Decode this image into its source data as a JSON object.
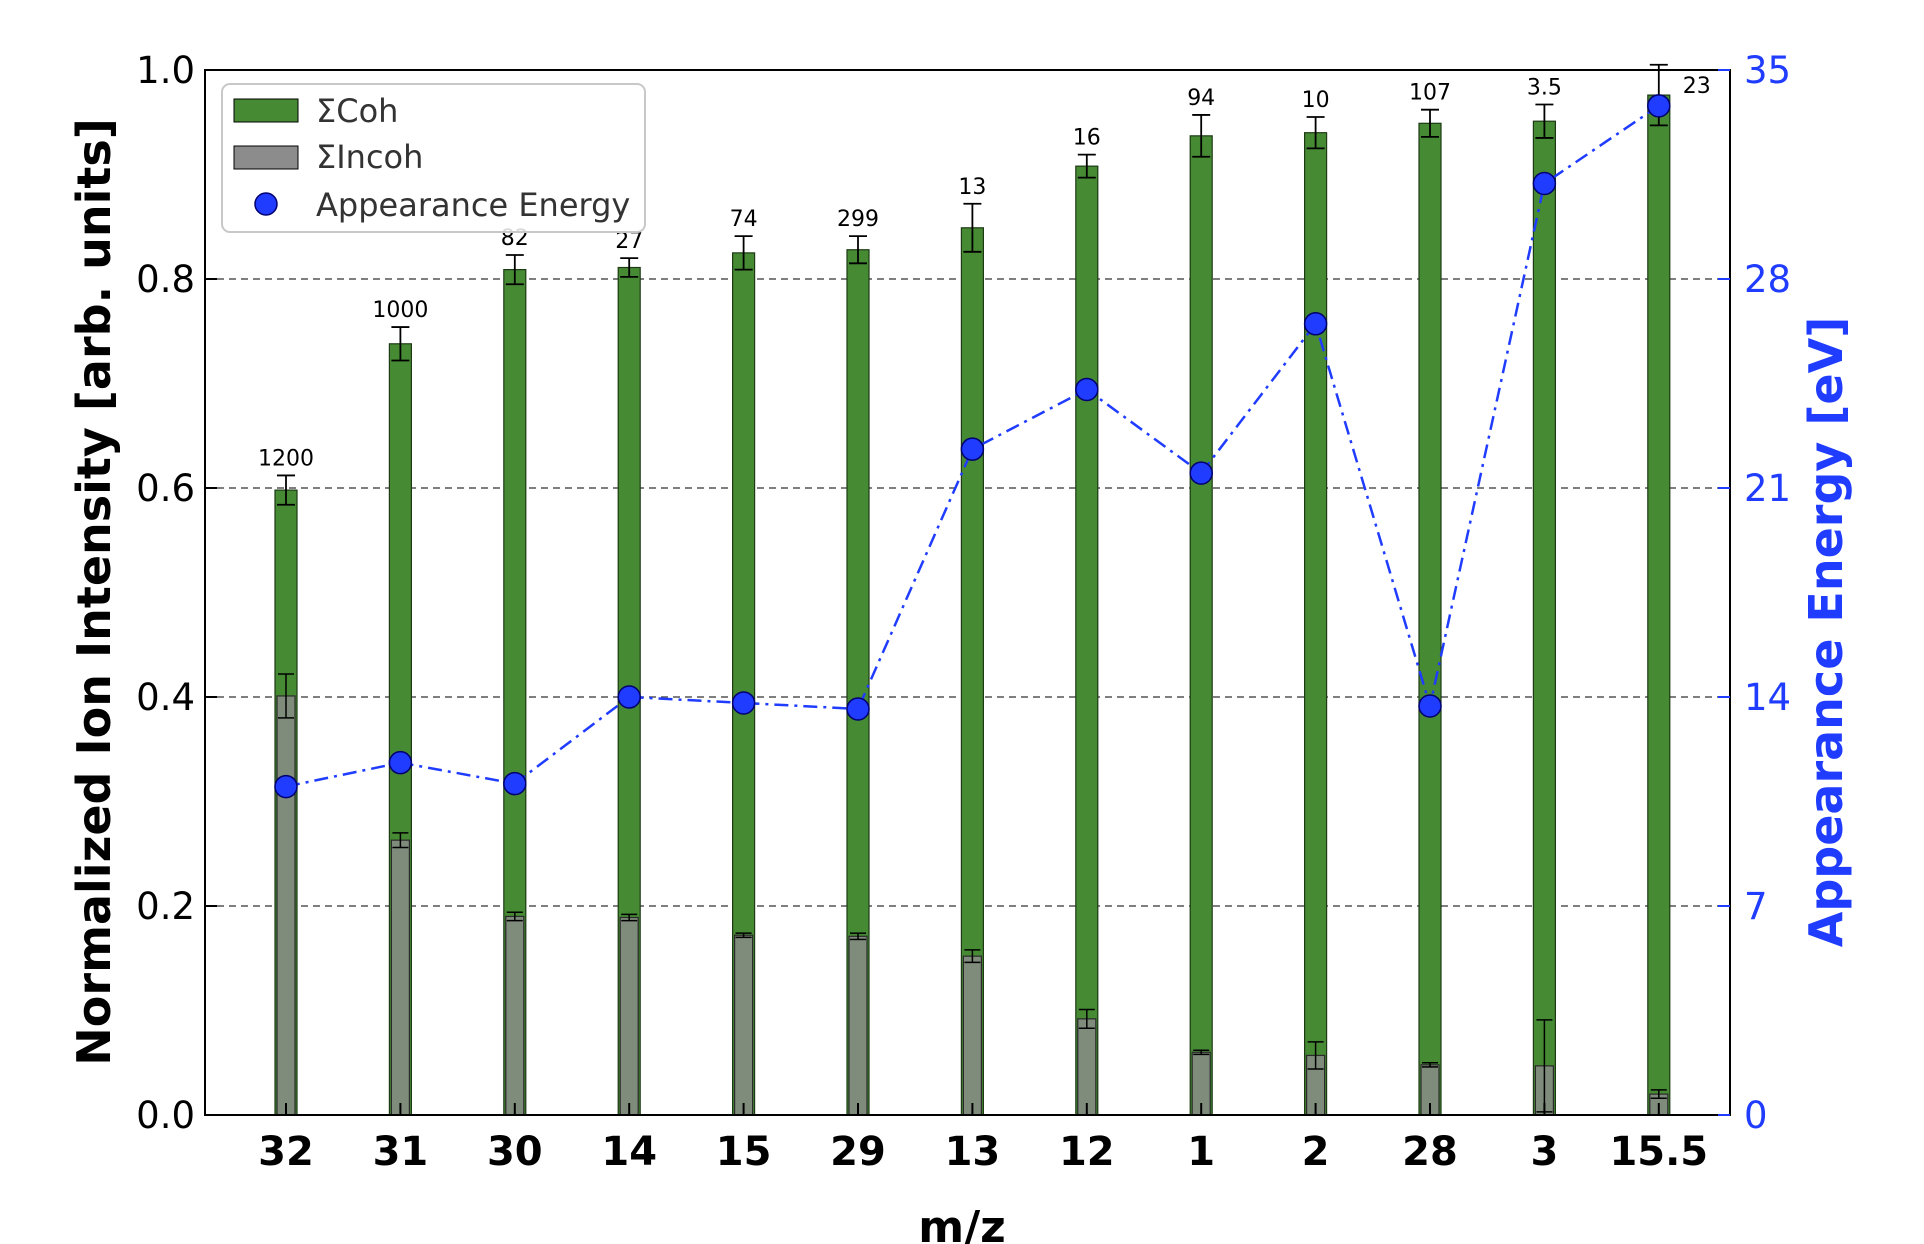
{
  "chart_data": {
    "type": "bar",
    "categories": [
      "32",
      "31",
      "30",
      "14",
      "15",
      "29",
      "13",
      "12",
      "1",
      "2",
      "28",
      "3",
      "15.5"
    ],
    "xlabel": "m/z",
    "ylabel": "Normalized Ion Intensity [arb. units]",
    "y2label": "Appearance Energy [eV]",
    "ylim": [
      0,
      1.0
    ],
    "y2lim": [
      0,
      35
    ],
    "yticks": [
      "0.0",
      "0.2",
      "0.4",
      "0.6",
      "0.8",
      "1.0"
    ],
    "y2ticks": [
      "0",
      "7",
      "14",
      "21",
      "28",
      "35"
    ],
    "grid": "horizontal dashed",
    "legend_position": "top-left",
    "series": [
      {
        "name": "ΣCoh",
        "kind": "bar",
        "color": "#468a34",
        "values": [
          0.598,
          0.738,
          0.809,
          0.811,
          0.825,
          0.828,
          0.849,
          0.908,
          0.937,
          0.94,
          0.949,
          0.951,
          0.976
        ],
        "errors": [
          0.014,
          0.016,
          0.014,
          0.009,
          0.016,
          0.013,
          0.023,
          0.011,
          0.02,
          0.015,
          0.013,
          0.016,
          0.029
        ]
      },
      {
        "name": "ΣIncoh",
        "kind": "bar",
        "color": "#8c8c8c",
        "values": [
          0.401,
          0.263,
          0.19,
          0.189,
          0.172,
          0.171,
          0.152,
          0.092,
          0.06,
          0.057,
          0.048,
          0.047,
          0.02
        ],
        "errors": [
          0.021,
          0.007,
          0.004,
          0.003,
          0.002,
          0.003,
          0.006,
          0.009,
          0.002,
          0.013,
          0.002,
          0.044,
          0.004
        ]
      },
      {
        "name": "Appearance Energy",
        "kind": "line",
        "axis": "right",
        "color": "#1f3cff",
        "values": [
          11.0,
          11.8,
          11.1,
          14.0,
          13.8,
          13.6,
          22.3,
          24.3,
          21.5,
          26.5,
          13.7,
          31.2,
          33.8
        ]
      }
    ],
    "bar_labels": [
      "1200",
      "1000",
      "82",
      "27",
      "74",
      "299",
      "13",
      "16",
      "94",
      "10",
      "107",
      "3.5",
      "23"
    ]
  }
}
